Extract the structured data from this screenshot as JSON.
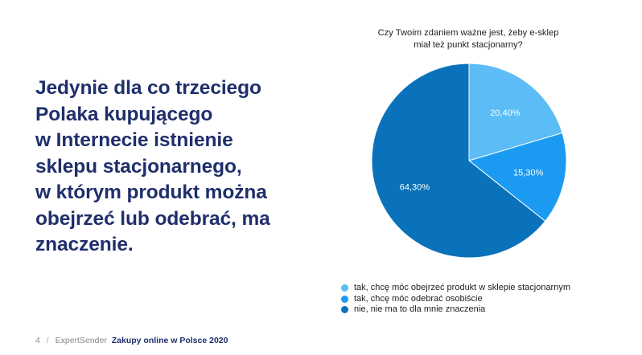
{
  "headline": {
    "lines": [
      "Jedynie dla co trzeciego",
      "Polaka kupującego",
      "w Internecie istnienie",
      "sklepu stacjonarnego,",
      "w którym produkt można",
      "obejrzeć lub odebrać, ma",
      "znaczenie."
    ]
  },
  "chart_data": {
    "type": "pie",
    "title_lines": [
      "Czy Twoim zdaniem ważne jest, żeby e-sklep",
      "miał też punkt stacjonarny?"
    ],
    "slices": [
      {
        "label": "tak, chcę móc obejrzeć produkt w sklepie stacjonarnym",
        "value": 20.4,
        "display": "20,40%",
        "color": "#5bbcf6"
      },
      {
        "label": "tak, chcę móc odebrać osobiście",
        "value": 15.3,
        "display": "15,30%",
        "color": "#1b9af2"
      },
      {
        "label": "nie, nie ma to dla mnie znaczenia",
        "value": 64.3,
        "display": "64,30%",
        "color": "#0a72ba"
      }
    ],
    "legend_position": "bottom"
  },
  "footer": {
    "page": "4",
    "separator": "/",
    "brand": "ExpertSender",
    "report": "Zakupy online w Polsce 2020"
  }
}
